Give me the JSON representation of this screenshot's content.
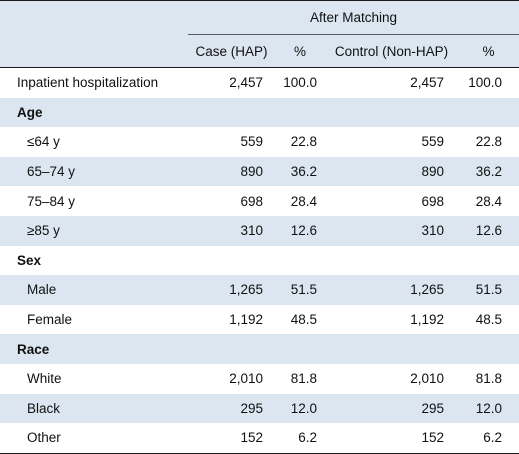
{
  "header": {
    "group": "After Matching",
    "columns": [
      "Case (HAP)",
      "%",
      "Control (Non-HAP)",
      "%"
    ]
  },
  "rows": [
    {
      "type": "data",
      "label": "Inpatient hospitalization",
      "values": [
        "2,457",
        "100.0",
        "2,457",
        "100.0"
      ],
      "indent": false
    },
    {
      "type": "section",
      "label": "Age"
    },
    {
      "type": "data",
      "label": "≤64 y",
      "values": [
        "559",
        "22.8",
        "559",
        "22.8"
      ],
      "indent": true
    },
    {
      "type": "data",
      "label": "65–74 y",
      "values": [
        "890",
        "36.2",
        "890",
        "36.2"
      ],
      "indent": true
    },
    {
      "type": "data",
      "label": "75–84 y",
      "values": [
        "698",
        "28.4",
        "698",
        "28.4"
      ],
      "indent": true
    },
    {
      "type": "data",
      "label": "≥85 y",
      "values": [
        "310",
        "12.6",
        "310",
        "12.6"
      ],
      "indent": true
    },
    {
      "type": "section",
      "label": "Sex"
    },
    {
      "type": "data",
      "label": "Male",
      "values": [
        "1,265",
        "51.5",
        "1,265",
        "51.5"
      ],
      "indent": true
    },
    {
      "type": "data",
      "label": "Female",
      "values": [
        "1,192",
        "48.5",
        "1,192",
        "48.5"
      ],
      "indent": true
    },
    {
      "type": "section",
      "label": "Race"
    },
    {
      "type": "data",
      "label": "White",
      "values": [
        "2,010",
        "81.8",
        "2,010",
        "81.8"
      ],
      "indent": true
    },
    {
      "type": "data",
      "label": "Black",
      "values": [
        "295",
        "12.0",
        "295",
        "12.0"
      ],
      "indent": true
    },
    {
      "type": "data",
      "label": "Other",
      "values": [
        "152",
        "6.2",
        "152",
        "6.2"
      ],
      "indent": true
    }
  ],
  "colors": {
    "header_bg": "#dbe6f0",
    "shade_bg": "#dbe6f0",
    "rule": "#1a1a1a"
  }
}
